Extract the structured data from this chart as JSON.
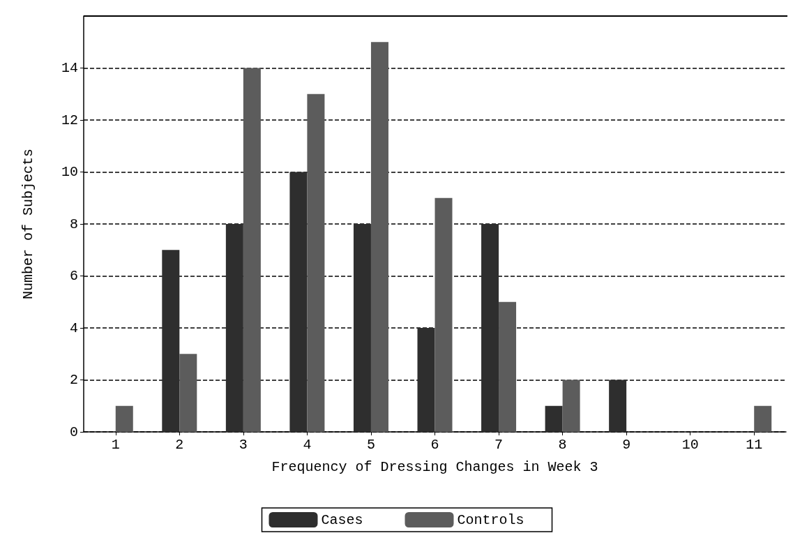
{
  "chart_data": {
    "type": "bar",
    "xlabel": "Frequency of Dressing Changes in Week 3",
    "ylabel": "Number of Subjects",
    "categories": [
      "1",
      "2",
      "3",
      "4",
      "5",
      "6",
      "7",
      "8",
      "9",
      "10",
      "11"
    ],
    "series": [
      {
        "name": "Cases",
        "color": "#2e2e2e",
        "values": [
          0,
          7,
          8,
          10,
          8,
          4,
          8,
          1,
          2,
          0,
          0
        ]
      },
      {
        "name": "Controls",
        "color": "#5c5c5c",
        "values": [
          1,
          3,
          14,
          13,
          15,
          9,
          5,
          2,
          0,
          0,
          1
        ]
      }
    ],
    "ylim": [
      0,
      16
    ],
    "yticks": [
      0,
      2,
      4,
      6,
      8,
      10,
      12,
      14
    ],
    "grid": "y",
    "legend": "bottom",
    "line_style": "dashed"
  }
}
